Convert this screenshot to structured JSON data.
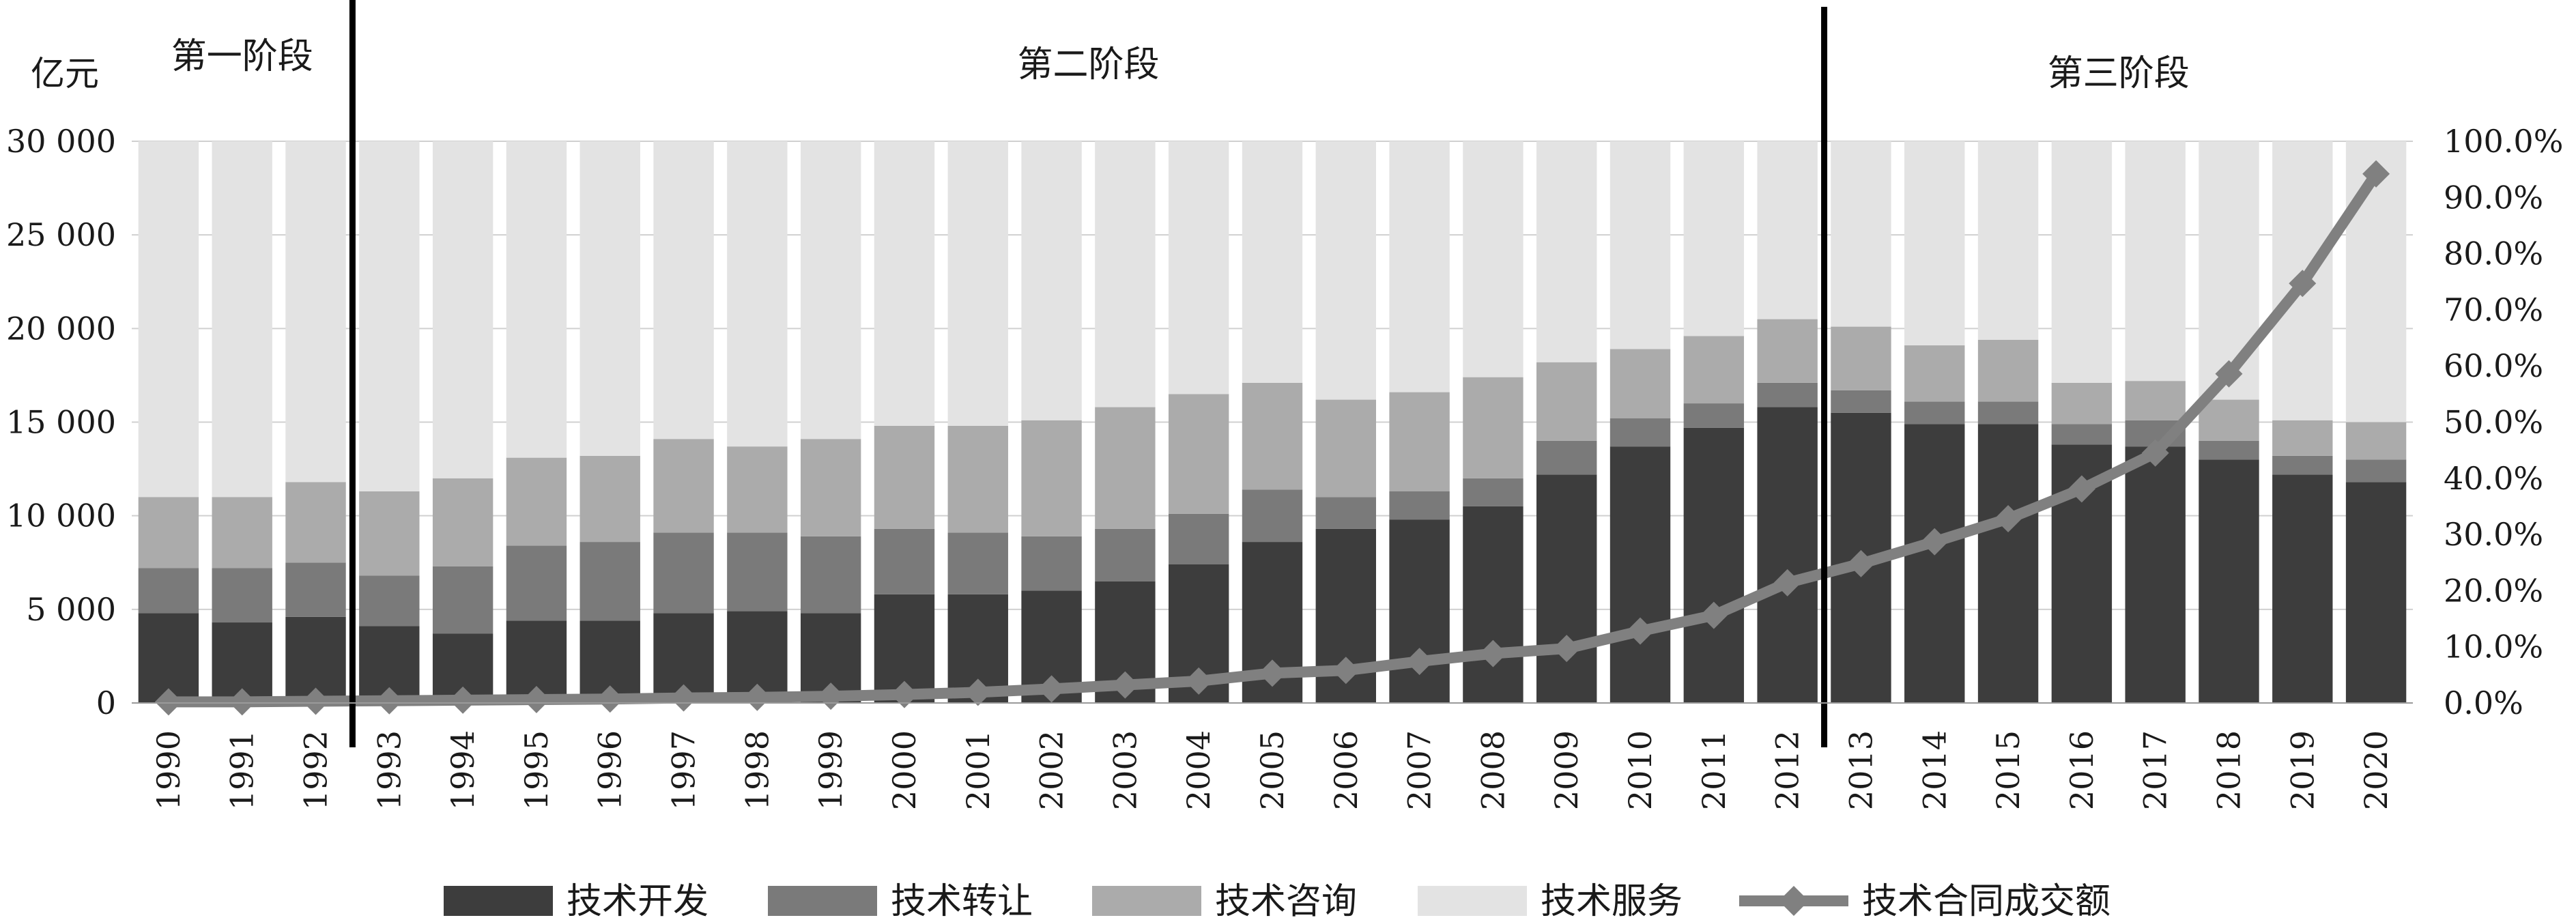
{
  "chart_data": {
    "type": "bar",
    "stacked": true,
    "categories": [
      "1990",
      "1991",
      "1992",
      "1993",
      "1994",
      "1995",
      "1996",
      "1997",
      "1998",
      "1999",
      "2000",
      "2001",
      "2002",
      "2003",
      "2004",
      "2005",
      "2006",
      "2007",
      "2008",
      "2009",
      "2010",
      "2011",
      "2012",
      "2013",
      "2014",
      "2015",
      "2016",
      "2017",
      "2018",
      "2019",
      "2020"
    ],
    "y_left_unit": "亿元",
    "y_left_lim": [
      0,
      30000
    ],
    "y_left_ticks": [
      "0",
      "5 000",
      "10 000",
      "15 000",
      "20 000",
      "25 000",
      "30 000"
    ],
    "y_right_lim": [
      0,
      100
    ],
    "y_right_ticks": [
      "0.0%",
      "10.0%",
      "20.0%",
      "30.0%",
      "40.0%",
      "50.0%",
      "60.0%",
      "70.0%",
      "80.0%",
      "90.0%",
      "100.0%"
    ],
    "grid": true,
    "legend_position": "bottom",
    "series": [
      {
        "name": "技术开发",
        "type": "bar",
        "color": "#3d3d3d",
        "values": [
          4800,
          4300,
          4600,
          4100,
          3700,
          4400,
          4400,
          4800,
          4900,
          4800,
          5800,
          5800,
          6000,
          6500,
          7400,
          8600,
          9300,
          9800,
          10500,
          12200,
          13700,
          14700,
          15800,
          15500,
          14900,
          14900,
          13800,
          13700,
          13000,
          12200,
          11800
        ]
      },
      {
        "name": "技术转让",
        "type": "bar",
        "color": "#7a7a7a",
        "values": [
          2400,
          2900,
          2900,
          2700,
          3600,
          4000,
          4200,
          4300,
          4200,
          4100,
          3500,
          3300,
          2900,
          2800,
          2700,
          2800,
          1700,
          1500,
          1500,
          1800,
          1500,
          1300,
          1300,
          1200,
          1200,
          1200,
          1100,
          1400,
          1000,
          1000,
          1200
        ]
      },
      {
        "name": "技术咨询",
        "type": "bar",
        "color": "#ababab",
        "values": [
          3800,
          3800,
          4300,
          4500,
          4700,
          4700,
          4600,
          5000,
          4600,
          5200,
          5500,
          5700,
          6200,
          6500,
          6400,
          5700,
          5200,
          5300,
          5400,
          4200,
          3700,
          3600,
          3400,
          3400,
          3000,
          3300,
          2200,
          2100,
          2200,
          1900,
          2000
        ]
      },
      {
        "name": "技术服务",
        "type": "bar",
        "color": "#e3e3e3",
        "values": [
          19000,
          19000,
          18200,
          18700,
          18000,
          16900,
          16800,
          15900,
          16300,
          15900,
          15200,
          15200,
          14900,
          14200,
          13500,
          12900,
          13800,
          13400,
          12600,
          11800,
          11100,
          10400,
          9500,
          9900,
          10900,
          10600,
          12900,
          12800,
          13800,
          14900,
          15000
        ]
      },
      {
        "name": "技术合同成交额",
        "type": "line",
        "axis": "right",
        "unit": "%",
        "color": "#808080",
        "values": [
          0.2,
          0.2,
          0.3,
          0.4,
          0.5,
          0.6,
          0.7,
          0.9,
          1.0,
          1.2,
          1.5,
          1.9,
          2.5,
          3.2,
          3.9,
          5.3,
          5.8,
          7.4,
          8.8,
          9.7,
          12.8,
          15.6,
          21.4,
          24.8,
          28.7,
          32.8,
          38.1,
          44.5,
          58.6,
          74.7,
          94.2
        ]
      }
    ],
    "annotations": [
      {
        "text": "第一阶段",
        "from": "1990",
        "to": "1992"
      },
      {
        "text": "第二阶段",
        "from": "1993",
        "to": "2012"
      },
      {
        "text": "第三阶段",
        "from": "2013",
        "to": "2020"
      }
    ],
    "dividers_after": [
      "1992",
      "2012"
    ]
  }
}
